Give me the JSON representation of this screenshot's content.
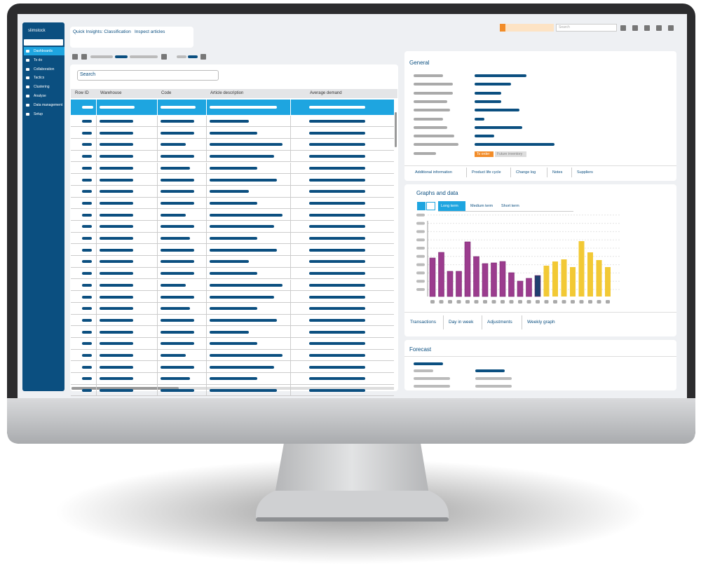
{
  "sidebar": {
    "logo": "slimstock",
    "nav": [
      "Dashboards",
      "To do",
      "Collaboration",
      "Tactics",
      "Clustering",
      "Analyse",
      "Data management",
      "Setup"
    ]
  },
  "breadcrumb": [
    "Quick Insights: Classification",
    "Inspect articles"
  ],
  "top_search": "Search",
  "table": {
    "search": "Search",
    "columns": [
      "Row ID",
      "Warehouse",
      "Code",
      "Article description",
      "Average demand"
    ]
  },
  "general": {
    "title": "General",
    "tags": [
      "To order",
      "Future inventory"
    ],
    "tabs": [
      "Additional information",
      "Product life cycle",
      "Change log",
      "Notes",
      "Suppliers"
    ]
  },
  "graphs": {
    "title": "Graphs and data",
    "ranges": [
      "Long term",
      "Medium term",
      "Short term"
    ],
    "bars": [
      55,
      63,
      36,
      36,
      78,
      57,
      47,
      48,
      50,
      34,
      22,
      26,
      30,
      44,
      50,
      53,
      42,
      79,
      63,
      52,
      42
    ],
    "colors": [
      "#9b3c8e",
      "#9b3c8e",
      "#9b3c8e",
      "#9b3c8e",
      "#9b3c8e",
      "#9b3c8e",
      "#9b3c8e",
      "#9b3c8e",
      "#9b3c8e",
      "#9b3c8e",
      "#9b3c8e",
      "#9b3c8e",
      "#1f3f6e",
      "#f2c935",
      "#f2c935",
      "#f2c935",
      "#f2c935",
      "#f2c935",
      "#f2c935",
      "#f2c935",
      "#f2c935"
    ],
    "tabs": [
      "Transactions",
      "Day in week",
      "Adjustments",
      "Weekly graph"
    ]
  },
  "forecast": {
    "title": "Forecast"
  }
}
